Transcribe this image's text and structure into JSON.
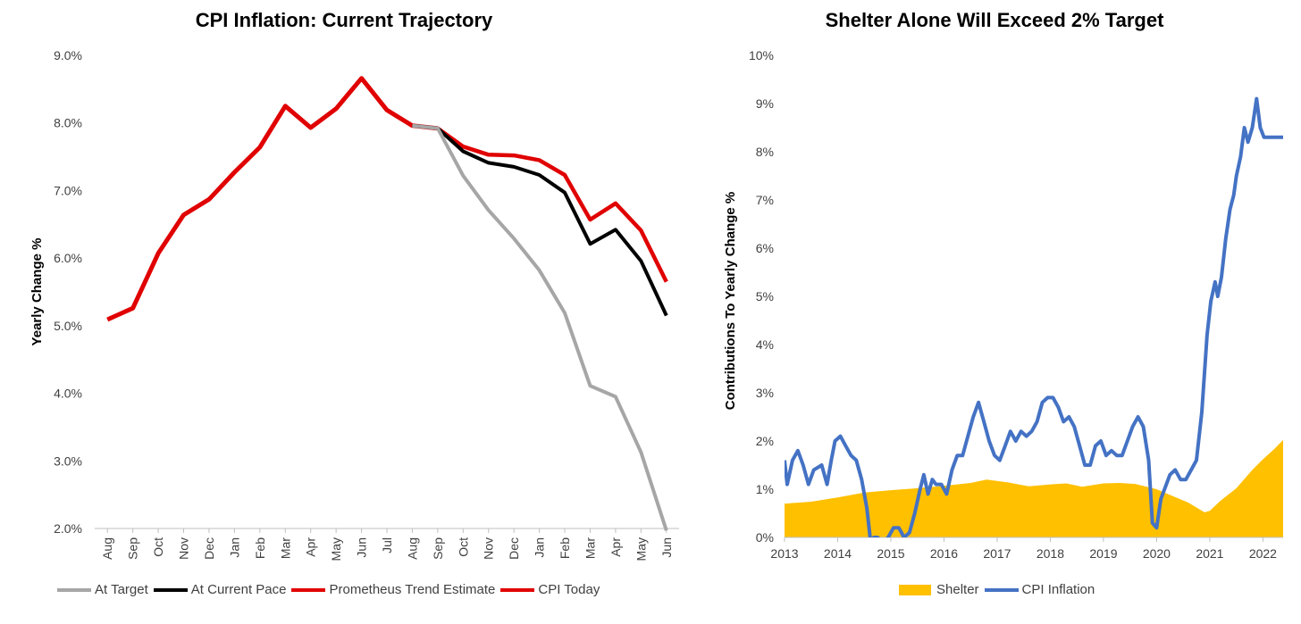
{
  "chart_data": [
    {
      "type": "line",
      "title": "CPI Inflation: Current Trajectory",
      "xlabel": "",
      "ylabel": "Yearly Change %",
      "ylim": [
        2.0,
        9.0
      ],
      "yticks": [
        "2.0%",
        "3.0%",
        "4.0%",
        "5.0%",
        "6.0%",
        "7.0%",
        "8.0%",
        "9.0%"
      ],
      "categories": [
        "Aug",
        "Sep",
        "Oct",
        "Nov",
        "Dec",
        "Jan",
        "Feb",
        "Mar",
        "Apr",
        "May",
        "Jun",
        "Jul",
        "Aug",
        "Sep",
        "Oct",
        "Nov",
        "Dec",
        "Jan",
        "Feb",
        "Mar",
        "Apr",
        "May",
        "Jun"
      ],
      "grid": false,
      "legend_position": "bottom",
      "series": [
        {
          "name": "At Target",
          "color": "#A6A6A6",
          "values": [
            null,
            null,
            null,
            null,
            null,
            null,
            null,
            null,
            null,
            null,
            null,
            null,
            7.96,
            7.92,
            7.22,
            6.71,
            6.29,
            5.82,
            5.19,
            4.11,
            3.95,
            3.13,
            1.97
          ]
        },
        {
          "name": "At Current Pace",
          "color": "#000000",
          "values": [
            null,
            null,
            null,
            null,
            null,
            null,
            null,
            null,
            null,
            null,
            null,
            null,
            7.96,
            7.92,
            7.58,
            7.41,
            7.35,
            7.23,
            6.97,
            6.21,
            6.42,
            5.96,
            5.15
          ]
        },
        {
          "name": "Prometheus Trend Estimate",
          "color": "#E00000",
          "values": [
            null,
            null,
            null,
            null,
            null,
            null,
            null,
            null,
            null,
            null,
            null,
            null,
            7.96,
            7.92,
            7.65,
            7.53,
            7.52,
            7.45,
            7.23,
            6.57,
            6.81,
            6.41,
            5.65
          ]
        },
        {
          "name": "CPI Today",
          "color": "#E00000",
          "values": [
            5.09,
            5.26,
            6.07,
            6.64,
            6.87,
            7.27,
            7.64,
            8.25,
            7.93,
            8.21,
            8.66,
            8.19,
            7.96,
            7.92,
            null,
            null,
            null,
            null,
            null,
            null,
            null,
            null,
            null
          ]
        }
      ]
    },
    {
      "type": "area",
      "title": "Shelter Alone Will Exceed 2% Target",
      "xlabel": "",
      "ylabel": "Contributions To Yearly Change %",
      "ylim": [
        0,
        10
      ],
      "yticks": [
        "0%",
        "1%",
        "2%",
        "3%",
        "4%",
        "5%",
        "6%",
        "7%",
        "8%",
        "9%",
        "10%"
      ],
      "xticks": [
        "2013",
        "2014",
        "2015",
        "2016",
        "2017",
        "2018",
        "2019",
        "2020",
        "2021",
        "2022"
      ],
      "xlim": [
        2013.0,
        2022.38
      ],
      "grid": false,
      "legend_position": "bottom",
      "series": [
        {
          "name": "Shelter",
          "kind": "area",
          "color": "#FFC000",
          "x": [
            2013.0,
            2013.5,
            2014.0,
            2014.5,
            2015.0,
            2015.5,
            2016.0,
            2016.5,
            2016.8,
            2017.2,
            2017.6,
            2018.0,
            2018.3,
            2018.6,
            2019.0,
            2019.3,
            2019.6,
            2020.0,
            2020.3,
            2020.6,
            2020.9,
            2021.0,
            2021.2,
            2021.5,
            2021.8,
            2022.0,
            2022.2,
            2022.38
          ],
          "y": [
            0.7,
            0.74,
            0.83,
            0.93,
            0.98,
            1.02,
            1.07,
            1.13,
            1.2,
            1.14,
            1.06,
            1.1,
            1.12,
            1.05,
            1.12,
            1.13,
            1.11,
            1.0,
            0.86,
            0.72,
            0.52,
            0.55,
            0.76,
            1.02,
            1.4,
            1.62,
            1.82,
            2.02
          ]
        },
        {
          "name": "CPI Inflation",
          "kind": "line",
          "color": "#4472C4",
          "x": [
            2013.0,
            2013.05,
            2013.15,
            2013.25,
            2013.35,
            2013.45,
            2013.55,
            2013.7,
            2013.8,
            2013.88,
            2013.95,
            2014.05,
            2014.15,
            2014.25,
            2014.35,
            2014.45,
            2014.55,
            2014.62,
            2014.68,
            2014.75,
            2014.85,
            2014.95,
            2015.05,
            2015.15,
            2015.25,
            2015.35,
            2015.45,
            2015.55,
            2015.62,
            2015.7,
            2015.78,
            2015.85,
            2015.95,
            2016.05,
            2016.15,
            2016.25,
            2016.35,
            2016.45,
            2016.55,
            2016.65,
            2016.75,
            2016.85,
            2016.95,
            2017.05,
            2017.15,
            2017.25,
            2017.35,
            2017.45,
            2017.55,
            2017.65,
            2017.75,
            2017.85,
            2017.95,
            2018.05,
            2018.15,
            2018.25,
            2018.35,
            2018.45,
            2018.55,
            2018.65,
            2018.75,
            2018.85,
            2018.95,
            2019.05,
            2019.15,
            2019.25,
            2019.35,
            2019.45,
            2019.55,
            2019.65,
            2019.75,
            2019.85,
            2019.92,
            2020.0,
            2020.08,
            2020.15,
            2020.25,
            2020.35,
            2020.45,
            2020.55,
            2020.65,
            2020.75,
            2020.85,
            2020.95,
            2021.02,
            2021.1,
            2021.15,
            2021.22,
            2021.3,
            2021.38,
            2021.45,
            2021.5,
            2021.58,
            2021.65,
            2021.72,
            2021.8,
            2021.88,
            2021.95,
            2022.02,
            2022.1,
            2022.18,
            2022.25,
            2022.32,
            2022.38
          ],
          "y": [
            1.6,
            1.1,
            1.6,
            1.8,
            1.5,
            1.1,
            1.4,
            1.5,
            1.1,
            1.6,
            2.0,
            2.1,
            1.9,
            1.7,
            1.6,
            1.2,
            0.6,
            -0.1,
            0.0,
            0.0,
            -0.1,
            0.0,
            0.2,
            0.2,
            0.0,
            0.1,
            0.5,
            1.0,
            1.3,
            0.9,
            1.2,
            1.1,
            1.1,
            0.9,
            1.4,
            1.7,
            1.7,
            2.1,
            2.5,
            2.8,
            2.4,
            2.0,
            1.7,
            1.6,
            1.9,
            2.2,
            2.0,
            2.2,
            2.1,
            2.2,
            2.4,
            2.8,
            2.9,
            2.9,
            2.7,
            2.4,
            2.5,
            2.3,
            1.9,
            1.5,
            1.5,
            1.9,
            2.0,
            1.7,
            1.8,
            1.7,
            1.7,
            2.0,
            2.3,
            2.5,
            2.3,
            1.6,
            0.3,
            0.2,
            0.8,
            1.0,
            1.3,
            1.4,
            1.2,
            1.2,
            1.4,
            1.6,
            2.6,
            4.2,
            4.9,
            5.3,
            5.0,
            5.4,
            6.2,
            6.8,
            7.1,
            7.5,
            7.9,
            8.5,
            8.2,
            8.5,
            9.1,
            8.5,
            8.3,
            8.3,
            8.3,
            8.3,
            8.3,
            8.3
          ]
        }
      ]
    }
  ]
}
